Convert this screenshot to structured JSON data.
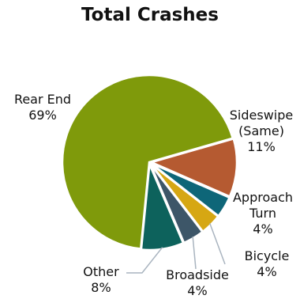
{
  "chart_data": {
    "type": "pie",
    "title": "Total Crashes",
    "slices": [
      {
        "label_lines": [
          "Rear End"
        ],
        "percent_label": "69%",
        "value": 69,
        "color": "#7f9a0b"
      },
      {
        "label_lines": [
          "Sideswipe",
          "(Same)"
        ],
        "percent_label": "11%",
        "value": 11,
        "color": "#b55a31"
      },
      {
        "label_lines": [
          "Approach",
          "Turn"
        ],
        "percent_label": "4%",
        "value": 4,
        "color": "#0e6678"
      },
      {
        "label_lines": [
          "Bicycle"
        ],
        "percent_label": "4%",
        "value": 4,
        "color": "#d6a713"
      },
      {
        "label_lines": [
          "Broadside"
        ],
        "percent_label": "4%",
        "value": 4,
        "color": "#3d5668"
      },
      {
        "label_lines": [
          "Other"
        ],
        "percent_label": "8%",
        "value": 8,
        "color": "#0d625c"
      }
    ]
  }
}
